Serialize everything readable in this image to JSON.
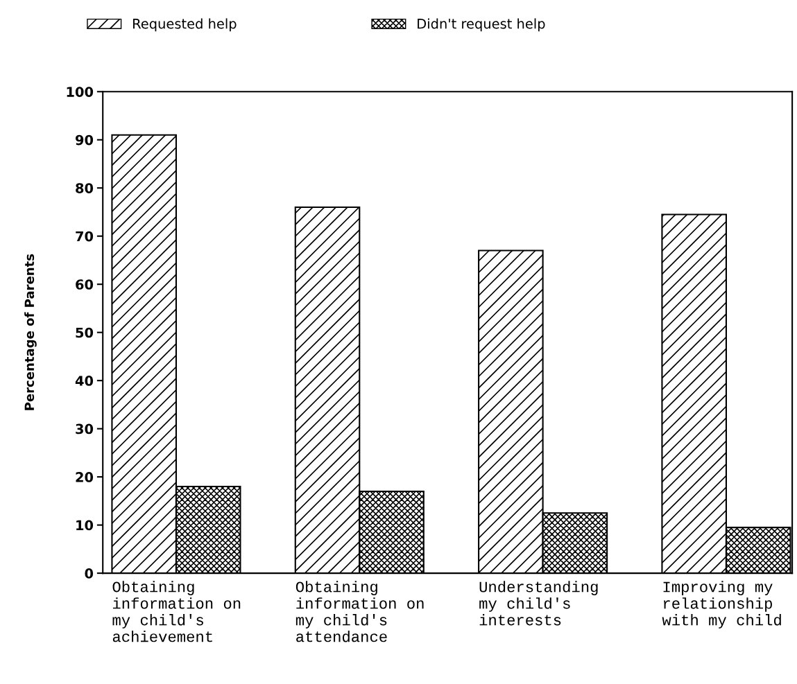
{
  "chart_data": {
    "type": "bar",
    "ylabel": "Percentage of Parents",
    "categories": [
      "Obtaining\ninformation on\nmy child's\nachievement",
      "Obtaining\ninformation on\nmy child's\nattendance",
      "Understanding\nmy child's\ninterests",
      "Improving my\nrelationship\nwith my child"
    ],
    "series": [
      {
        "name": "Requested help",
        "color": "#000000",
        "values": [
          91,
          76,
          67,
          74.5
        ]
      },
      {
        "name": "Didn't request help",
        "color": "#000000",
        "values": [
          18,
          17,
          12.5,
          9.5
        ]
      }
    ],
    "ylim": [
      0,
      100
    ],
    "yticks": [
      0,
      10,
      20,
      30,
      40,
      50,
      60,
      70,
      80,
      90,
      100
    ],
    "grid": false,
    "legend": "top"
  }
}
